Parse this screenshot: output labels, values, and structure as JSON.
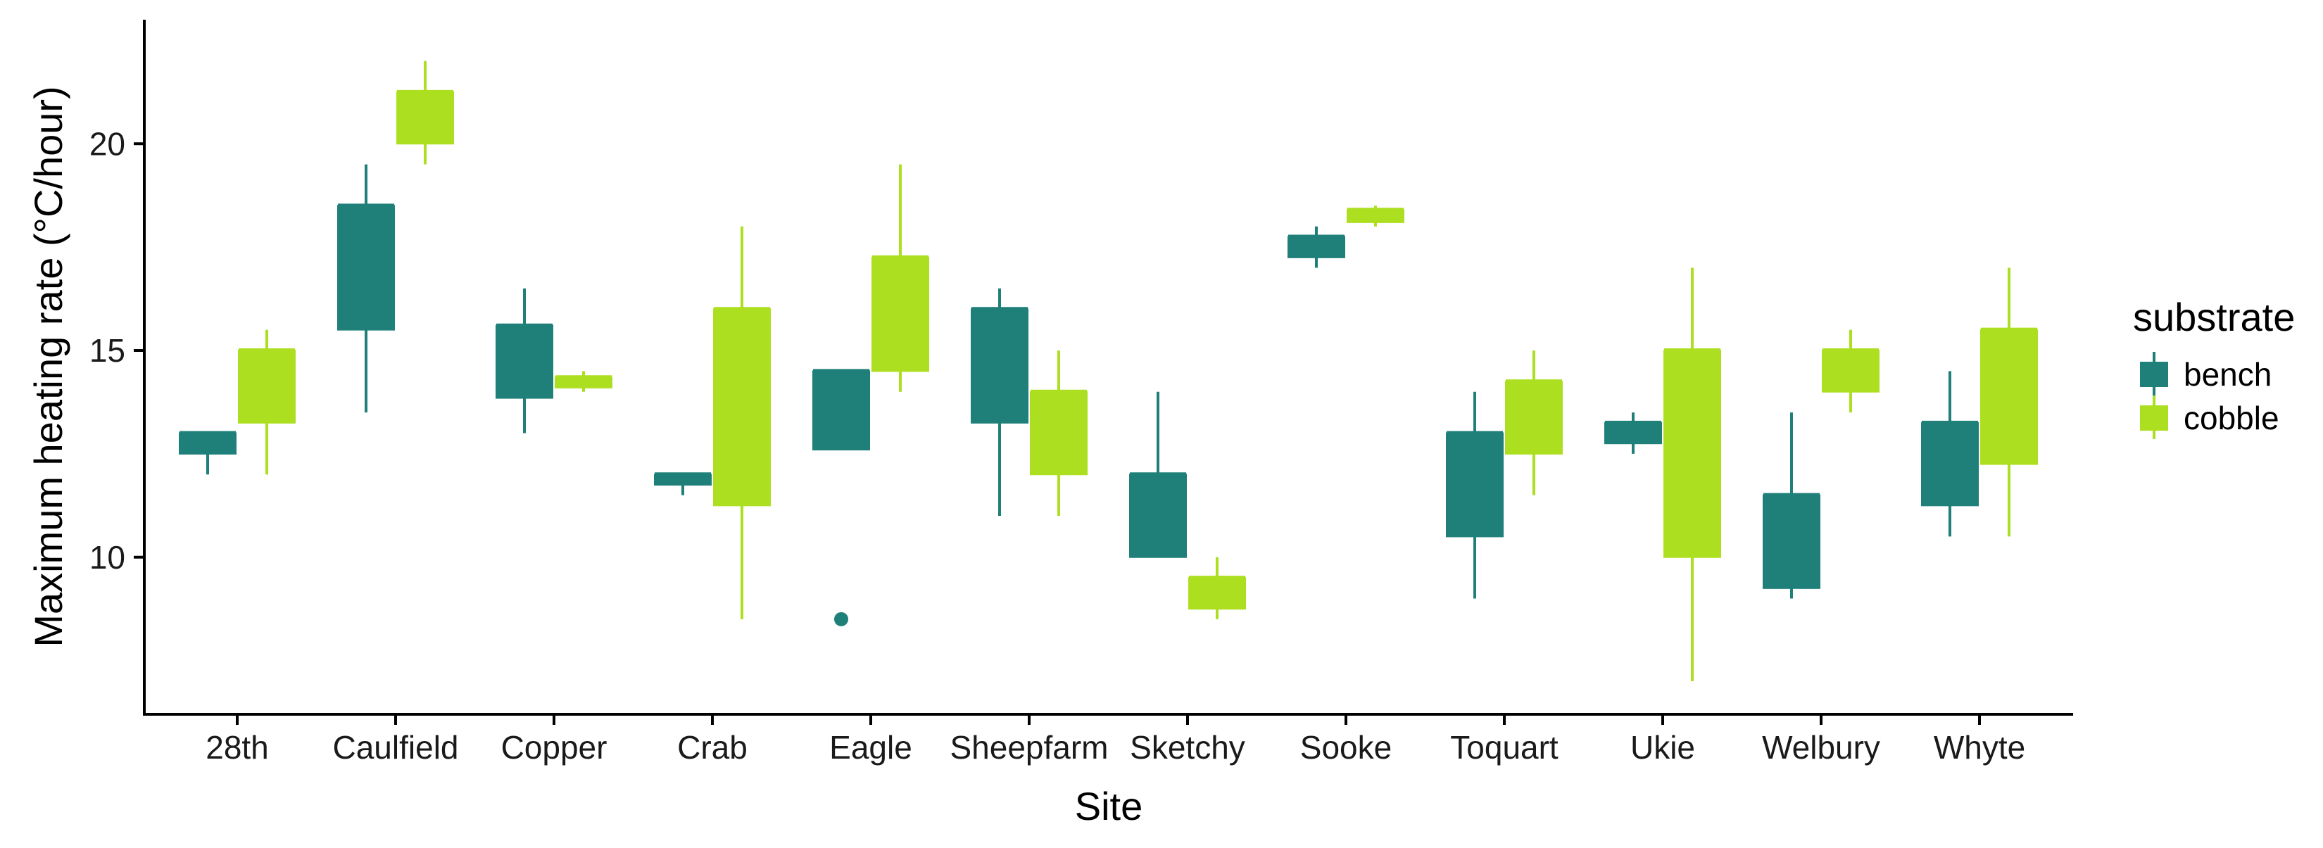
{
  "colors": {
    "bench": "#1f7f79",
    "cobble": "#addf21",
    "axis": "#000000"
  },
  "chart_data": {
    "type": "boxplot",
    "title": "",
    "xlabel": "Site",
    "ylabel": "Maximum heating rate (°C/hour)",
    "ylim": [
      6.2,
      23.0
    ],
    "yticks": [
      10,
      15,
      20
    ],
    "grid": false,
    "legend_position": "right",
    "legend_title": "substrate",
    "categories": [
      "28th",
      "Caulfield",
      "Copper",
      "Crab",
      "Eagle",
      "Sheepfarm",
      "Sketchy",
      "Sooke",
      "Toquart",
      "Ukie",
      "Welbury",
      "Whyte"
    ],
    "series": [
      {
        "name": "bench",
        "color": "#1f7f79",
        "boxes": [
          {
            "min": 12.0,
            "q1": 12.5,
            "median": 13.0,
            "q3": 13.0,
            "max": 13.0
          },
          {
            "min": 13.5,
            "q1": 15.5,
            "median": 18.5,
            "q3": 18.5,
            "max": 19.5
          },
          {
            "min": 13.0,
            "q1": 13.85,
            "median": 15.6,
            "q3": 15.6,
            "max": 16.5
          },
          {
            "min": 11.5,
            "q1": 11.75,
            "median": 12.0,
            "q3": 12.0,
            "max": 12.0
          },
          {
            "min": 12.6,
            "q1": 12.6,
            "median": 14.5,
            "q3": 14.5,
            "max": 14.5,
            "outliers": [
              8.5
            ]
          },
          {
            "min": 11.0,
            "q1": 13.25,
            "median": 16.0,
            "q3": 16.0,
            "max": 16.5
          },
          {
            "min": 10.0,
            "q1": 10.0,
            "median": 12.0,
            "q3": 12.0,
            "max": 14.0
          },
          {
            "min": 17.0,
            "q1": 17.25,
            "median": 17.75,
            "q3": 17.75,
            "max": 18.0
          },
          {
            "min": 9.0,
            "q1": 10.5,
            "median": 13.0,
            "q3": 13.0,
            "max": 14.0
          },
          {
            "min": 12.5,
            "q1": 12.75,
            "median": 13.25,
            "q3": 13.25,
            "max": 13.5
          },
          {
            "min": 9.0,
            "q1": 9.25,
            "median": 11.5,
            "q3": 11.5,
            "max": 13.5
          },
          {
            "min": 10.5,
            "q1": 11.25,
            "median": 13.25,
            "q3": 13.25,
            "max": 14.5
          }
        ]
      },
      {
        "name": "cobble",
        "color": "#addf21",
        "boxes": [
          {
            "min": 12.0,
            "q1": 13.25,
            "median": 15.0,
            "q3": 15.0,
            "max": 15.5
          },
          {
            "min": 19.5,
            "q1": 20.0,
            "median": 21.25,
            "q3": 21.25,
            "max": 22.0
          },
          {
            "min": 14.0,
            "q1": 14.1,
            "median": 14.35,
            "q3": 14.35,
            "max": 14.5
          },
          {
            "min": 8.5,
            "q1": 11.25,
            "median": 16.0,
            "q3": 16.0,
            "max": 18.0
          },
          {
            "min": 14.0,
            "q1": 14.5,
            "median": 17.25,
            "q3": 17.25,
            "max": 19.5
          },
          {
            "min": 11.0,
            "q1": 12.0,
            "median": 14.0,
            "q3": 14.0,
            "max": 15.0
          },
          {
            "min": 8.5,
            "q1": 8.75,
            "median": 9.5,
            "q3": 9.5,
            "max": 10.0
          },
          {
            "min": 18.0,
            "q1": 18.1,
            "median": 18.4,
            "q3": 18.4,
            "max": 18.5
          },
          {
            "min": 11.5,
            "q1": 12.5,
            "median": 14.25,
            "q3": 14.25,
            "max": 15.0
          },
          {
            "min": 7.0,
            "q1": 10.0,
            "median": 15.0,
            "q3": 15.0,
            "max": 17.0
          },
          {
            "min": 13.5,
            "q1": 14.0,
            "median": 15.0,
            "q3": 15.0,
            "max": 15.5
          },
          {
            "min": 10.5,
            "q1": 12.25,
            "median": 15.5,
            "q3": 15.5,
            "max": 17.0
          }
        ]
      }
    ]
  }
}
